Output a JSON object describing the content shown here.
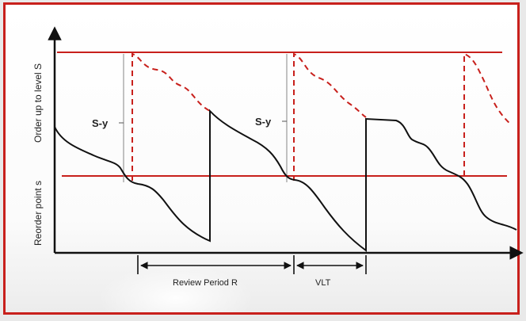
{
  "labels": {
    "order_up_to": "Order up to level S",
    "reorder_point": "Reorder point s",
    "s_minus_y_1": "S-y",
    "s_minus_y_2": "S-y",
    "review_period": "Review Period R",
    "vlt": "VLT"
  },
  "colors": {
    "frame": "#c8201c",
    "level_line": "#c8201c",
    "dashed": "#c8201c",
    "inventory": "#111111",
    "axis": "#111111"
  }
}
